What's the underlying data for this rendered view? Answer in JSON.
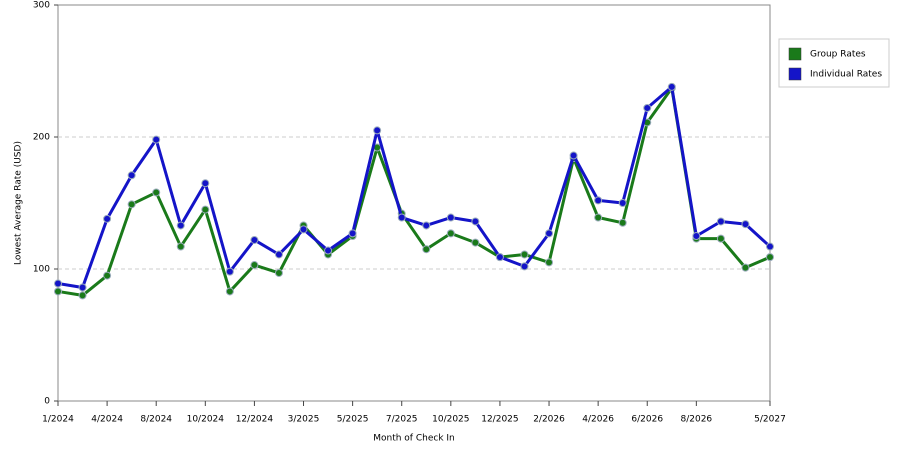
{
  "chart_data": {
    "type": "line",
    "x_label": "Month of Check In",
    "y_label": "Lowest Average Rate (USD)",
    "categories": [
      "1/2024",
      null,
      "4/2024",
      null,
      "8/2024",
      null,
      "10/2024",
      null,
      "12/2024",
      null,
      "3/2025",
      null,
      "5/2025",
      null,
      "7/2025",
      null,
      "10/2025",
      null,
      "12/2025",
      null,
      "2/2026",
      null,
      "4/2026",
      null,
      "6/2026",
      null,
      "8/2026",
      null,
      null,
      "5/2027"
    ],
    "series": [
      {
        "name": "Group Rates",
        "color": "#1a7a1a",
        "values": [
          83,
          80,
          95,
          149,
          158,
          117,
          145,
          83,
          103,
          97,
          133,
          111,
          125,
          192,
          142,
          115,
          127,
          120,
          109,
          111,
          105,
          184,
          139,
          135,
          211,
          237,
          123,
          123,
          101,
          109
        ]
      },
      {
        "name": "Individual Rates",
        "color": "#1414c8",
        "values": [
          89,
          86,
          138,
          171,
          198,
          133,
          165,
          98,
          122,
          111,
          130,
          114,
          127,
          205,
          139,
          133,
          139,
          136,
          109,
          102,
          127,
          186,
          152,
          150,
          222,
          238,
          125,
          136,
          134,
          117
        ]
      }
    ],
    "ylim": [
      0,
      300
    ],
    "yticks": [
      0,
      100,
      200,
      300
    ],
    "grid": true,
    "legend": "right"
  }
}
